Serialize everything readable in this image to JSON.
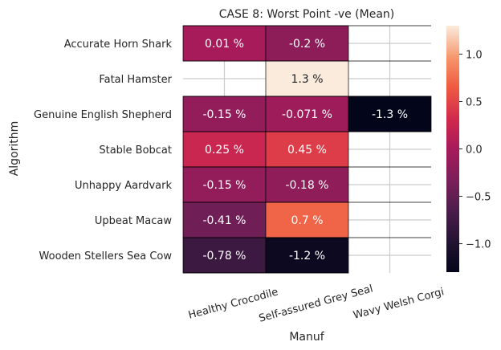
{
  "chart_data": {
    "type": "heatmap",
    "title": "CASE 8: Worst Point -ve (Mean)",
    "xlabel": "Manuf",
    "ylabel": "Algorithm",
    "columns": [
      "Healthy Crocodile",
      "Self-assured Grey Seal",
      "Wavy Welsh Corgi"
    ],
    "rows": [
      "Accurate Horn Shark",
      "Fatal Hamster",
      "Genuine English Shepherd",
      "Stable Bobcat",
      "Unhappy Aardvark",
      "Upbeat Macaw",
      "Wooden Stellers Sea Cow"
    ],
    "values": [
      [
        0.01,
        -0.2,
        null
      ],
      [
        null,
        1.3,
        null
      ],
      [
        -0.15,
        -0.071,
        -1.3
      ],
      [
        0.25,
        0.45,
        null
      ],
      [
        -0.15,
        -0.18,
        null
      ],
      [
        -0.41,
        0.7,
        null
      ],
      [
        -0.78,
        -1.2,
        null
      ]
    ],
    "labels": [
      [
        "0.01 %",
        "-0.2 %",
        ""
      ],
      [
        "",
        "1.3 %",
        ""
      ],
      [
        "-0.15 %",
        "-0.071 %",
        "-1.3 %"
      ],
      [
        "0.25 %",
        "0.45 %",
        ""
      ],
      [
        "-0.15 %",
        "-0.18 %",
        ""
      ],
      [
        "-0.41 %",
        "0.7 %",
        ""
      ],
      [
        "-0.78 %",
        "-1.2 %",
        ""
      ]
    ],
    "colorbar": {
      "min": -1.3,
      "max": 1.3,
      "ticks": [
        -1.0,
        -0.5,
        0.0,
        0.5,
        1.0
      ],
      "tick_labels": [
        "−1.0",
        "−0.5",
        "0.0",
        "0.5",
        "1.0"
      ],
      "colormap": "rocket"
    },
    "grid": true
  }
}
